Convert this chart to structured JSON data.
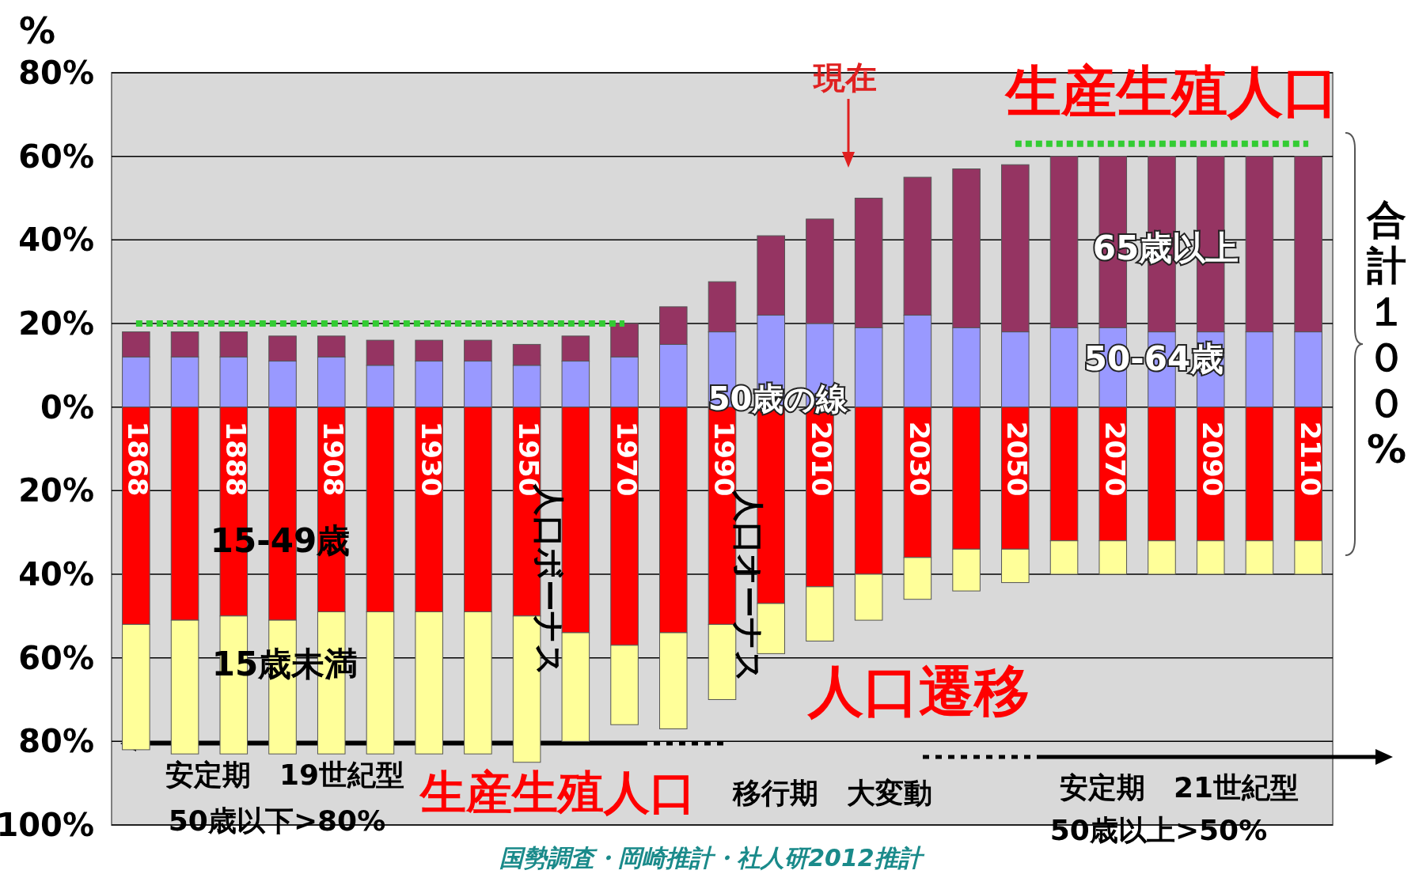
{
  "chart_data": {
    "type": "bar",
    "stacked": true,
    "ylabel": "%",
    "categories": [
      "1868",
      null,
      "1888",
      null,
      "1908",
      null,
      "1930",
      null,
      "1950",
      null,
      "1970",
      null,
      "1990",
      null,
      "2010",
      null,
      "2030",
      null,
      "2050",
      null,
      "2070",
      null,
      "2090",
      null,
      "2110"
    ],
    "series": [
      {
        "name": "50-64歳",
        "color": "#9999ff",
        "values": [
          12,
          12,
          12,
          11,
          12,
          10,
          11,
          11,
          10,
          11,
          12,
          15,
          18,
          22,
          20,
          19,
          22,
          19,
          18,
          19,
          19,
          18,
          18,
          18,
          18
        ]
      },
      {
        "name": "65歳以上",
        "color": "#953462",
        "values": [
          6,
          6,
          6,
          6,
          5,
          6,
          5,
          5,
          5,
          6,
          8,
          9,
          12,
          19,
          25,
          31,
          33,
          38,
          40,
          41,
          41,
          42,
          42,
          42,
          42
        ]
      },
      {
        "name": "15-49歳",
        "color": "#ff0000",
        "values": [
          -52,
          -51,
          -50,
          -51,
          -49,
          -49,
          -49,
          -49,
          -50,
          -54,
          -57,
          -54,
          -52,
          -47,
          -43,
          -40,
          -36,
          -34,
          -34,
          -32,
          -32,
          -32,
          -32,
          -32,
          -32
        ]
      },
      {
        "name": "15歳未満",
        "color": "#ffff99",
        "values": [
          -30,
          -32,
          -33,
          -32,
          -34,
          -34,
          -34,
          -34,
          -35,
          -26,
          -19,
          -23,
          -18,
          -12,
          -13,
          -11,
          -10,
          -10,
          -8,
          -8,
          -8,
          -8,
          -8,
          -8,
          -8
        ]
      },
      {
        "type": "line",
        "color": "#33cc33",
        "line_style": "dotted",
        "values": [
          20,
          20,
          20,
          20,
          20,
          20,
          20,
          20,
          20,
          20,
          20,
          null,
          null,
          null,
          null,
          null,
          null,
          null,
          null,
          null,
          null,
          null,
          null,
          null,
          null
        ]
      },
      {
        "type": "line",
        "color": "#33cc33",
        "line_style": "dotted",
        "values": [
          null,
          null,
          null,
          null,
          null,
          null,
          null,
          null,
          null,
          null,
          null,
          null,
          null,
          null,
          null,
          null,
          null,
          null,
          63,
          63,
          63,
          63,
          63,
          63,
          63
        ]
      }
    ],
    "ylim": [
      -100,
      80
    ],
    "yticks": [
      {
        "value": 80,
        "label": "80%"
      },
      {
        "value": 60,
        "label": "60%"
      },
      {
        "value": 40,
        "label": "40%"
      },
      {
        "value": 20,
        "label": "20%"
      },
      {
        "value": 0,
        "label": "0%"
      },
      {
        "value": -20,
        "label": "20%"
      },
      {
        "value": -40,
        "label": "40%"
      },
      {
        "value": -60,
        "label": "60%"
      },
      {
        "value": -80,
        "label": "80%"
      },
      {
        "value": -100,
        "label": "100%"
      }
    ],
    "grid": "y",
    "annotations": [
      "現在",
      "生産生殖人口",
      "合計１００%",
      "50歳の線",
      "人口ボーナス",
      "人口オーナス",
      "人口遷移",
      "生産生殖人口",
      "安定期　19世紀型",
      "50歳以下>80%",
      "移行期　大変動",
      "安定期　21世紀型",
      "50歳以上>50%",
      "国勢調査・岡崎推計・社人研2012推計"
    ]
  }
}
